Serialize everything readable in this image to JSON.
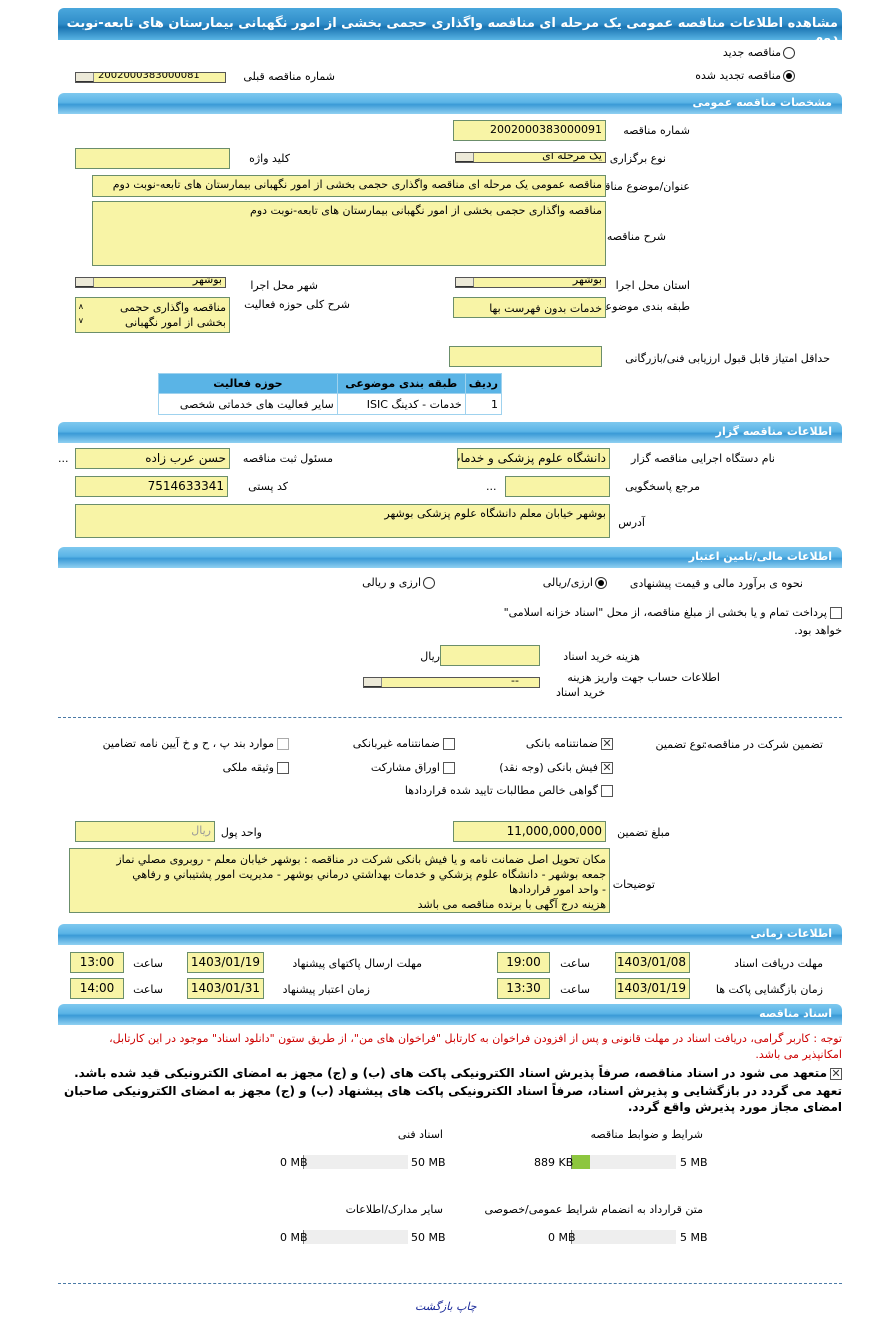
{
  "title": "مشاهده اطلاعات مناقصه عمومی یک مرحله ای مناقصه واگذاری حجمی بخشی از امور نگهبانی بیمارستان های تابعه-نوبت دوم",
  "tender_type": {
    "new_label": "مناقصه جدید",
    "renewed_label": "مناقصه تجدید شده",
    "selected": "renewed",
    "prev_number_label": "شماره مناقصه قبلی",
    "prev_number_value": "2002000383000081"
  },
  "general": {
    "header": "مشخصات مناقصه عمومی",
    "number_label": "شماره مناقصه",
    "number_value": "2002000383000091",
    "keyword_label": "کلید واژه",
    "keyword_value": "",
    "holding_type_label": "نوع برگزاری",
    "holding_type_value": "یک مرحله ای",
    "subject_label": "عنوان/موضوع مناقصه",
    "subject_value": "مناقصه عمومی یک مرحله ای مناقصه واگذاری حجمی بخشی از امور نگهبانی  بیمارستان های تابعه-نوبت دوم",
    "desc_label": "شرح مناقصه",
    "desc_value": "مناقصه واگذاری حجمی بخشی از امور نگهبانی بیمارستان های تابعه-نوبت دوم",
    "city_label": "شهر محل اجرا",
    "city_value": "بوشهر",
    "province_label": "استان محل اجرا",
    "province_value": "بوشهر",
    "activity_desc_label": "شرح کلی حوزه فعالیت",
    "activity_desc_value": "مناقصه واگذاری حجمی بخشی از امور نگهبانی",
    "category_label": "طبقه بندی موضوعی",
    "category_value": "خدمات بدون فهرست بها",
    "min_score_label": "حداقل امتیاز قابل قبول ارزیابی فنی/بازرگانی",
    "min_score_value": "",
    "table": {
      "headers": [
        "ردیف",
        "طبقه بندی موضوعی",
        "حوزه فعالیت"
      ],
      "rows": [
        [
          "1",
          "خدمات - کدینگ ISIC",
          "سایر فعالیت های خدماتی شخصی"
        ]
      ]
    }
  },
  "organizer": {
    "header": "اطلاعات مناقصه گزار",
    "org_label": "نام دستگاه اجرایی مناقصه گزار",
    "org_value": "دانشگاه علوم پزشکی و خدمات",
    "responsible_label": "مسئول ثبت مناقصه",
    "responsible_value": "حسن عرب زاده",
    "more": "...",
    "reference_label": "مرجع پاسخگویی",
    "reference_value": "",
    "postal_label": "کد پستی",
    "postal_value": "7514633341",
    "address_label": "آدرس",
    "address_value": "بوشهر خیابان معلم دانشگاه علوم پزشکی بوشهر"
  },
  "financial": {
    "header": "اطلاعات مالی/تامین اعتبار",
    "estimate_label": "نحوه ی برآورد مالی و قیمت پیشنهادی",
    "opt1": "ارزی/ریالی",
    "opt2": "ارزی و ریالی",
    "treasury_text": "پرداخت تمام و یا بخشی از مبلغ مناقصه، از محل \"اسناد خزانه اسلامی\"",
    "treasury_text2": "خواهد بود.",
    "doc_cost_label": "هزینه خرید اسناد",
    "doc_cost_value": "",
    "currency": "ریال",
    "account_label1": "اطلاعات حساب جهت واریز هزینه",
    "account_label2": "خرید اسناد",
    "account_value": "--"
  },
  "guarantee": {
    "label": "تضمین شرکت در مناقصه:",
    "type_label": "نوع تضمین",
    "options": [
      {
        "label": "ضمانتنامه بانکی",
        "checked": true
      },
      {
        "label": "ضمانتنامه غیربانکی",
        "checked": false
      },
      {
        "label": "موارد بند پ ، ح و خ آیین نامه تضامین",
        "checked": false,
        "disabled": true
      },
      {
        "label": "فیش بانکی (وجه نقد)",
        "checked": true
      },
      {
        "label": "اوراق مشارکت",
        "checked": false
      },
      {
        "label": "وثیقه ملکی",
        "checked": false
      },
      {
        "label": "گواهی خالص مطالبات تایید شده قراردادها",
        "checked": false
      }
    ],
    "amount_label": "مبلغ تضمین",
    "amount_value": "11,000,000,000",
    "unit_label": "واحد پول",
    "unit_value": "ریال",
    "notes_label": "توضیحات",
    "notes_lines": [
      "مکان تحویل اصل ضمانت نامه و یا فیش بانکی شرکت در مناقصه :  بوشهر خیابان معلم - روبروی مصلي نماز",
      "جمعه بوشهر - دانشگاه علوم پزشکي و خدمات بهداشتي درماني بوشهر  - مديريت امور پشتيباني و رفاهي",
      "- واحد امور قراردادها",
      "هزینه درج آگهی با برنده مناقصه می باشد"
    ]
  },
  "timing": {
    "header": "اطلاعات زمانی",
    "hour_label": "ساعت",
    "doc_receive_label": "مهلت دریافت اسناد",
    "doc_receive_date": "1403/01/08",
    "doc_receive_time": "19:00",
    "send_label": "مهلت ارسال پاکتهای پیشنهاد",
    "send_date": "1403/01/19",
    "send_time": "13:00",
    "open_label": "زمان بازگشایی پاکت ها",
    "open_date": "1403/01/19",
    "open_time": "13:30",
    "validity_label": "زمان اعتبار پیشنهاد",
    "validity_date": "1403/01/31",
    "validity_time": "14:00"
  },
  "documents": {
    "header": "اسناد مناقصه",
    "notice1": "توجه : کاربر گرامی، دریافت اسناد در مهلت قانونی و پس از افزودن فراخوان به کارتابل \"فراخوان های من\"، از طریق ستون \"دانلود اسناد\" موجود در این کارتابل،",
    "notice2": "امکانپذیر می باشد.",
    "commit1": "متعهد می شود در اسناد مناقصه، صرفاً پذیرش اسناد الکترونیکی پاکت های (ب) و (ج) مجهز به امضای الکترونیکی قید شده باشد.",
    "commit2": "تعهد می گردد در بازگشایی و پذیرش اسناد، صرفاً اسناد الکترونیکی پاکت های پیشنهاد (ب) و (ج) مجهز به امضای الکترونیکی صاحبان",
    "commit3": "امضای مجاز مورد پذیرش واقع گردد.",
    "files": [
      {
        "label": "شرایط و ضوابط مناقصه",
        "size": "889 KB",
        "max": "5 MB",
        "fill_fraction": 0.17
      },
      {
        "label": "اسناد فنی",
        "size": "0 MB",
        "max": "50 MB",
        "fill_fraction": 0
      },
      {
        "label": "متن قرارداد به انضمام شرایط عمومی/خصوصی",
        "size": "0 MB",
        "max": "5 MB",
        "fill_fraction": 0
      },
      {
        "label": "سایر مدارک/اطلاعات",
        "size": "0 MB",
        "max": "50 MB",
        "fill_fraction": 0
      }
    ]
  },
  "footer": {
    "print": "چاپ",
    "back": "بازگشت"
  },
  "colors": {
    "header_blue": "#5ab4e6",
    "field_yellow": "#f8f4a6",
    "notice_red": "#cc0000",
    "progress_green": "#8dc63f",
    "link_blue": "#1a2a9a"
  }
}
